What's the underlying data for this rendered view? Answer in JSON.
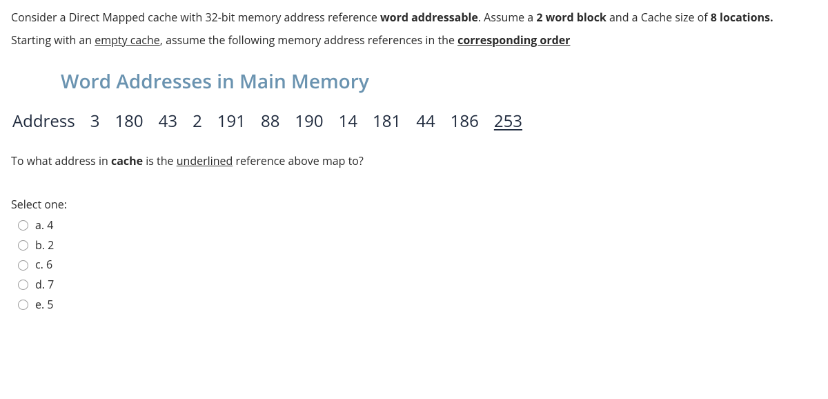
{
  "intro": {
    "line1_a": "Consider a Direct Mapped cache with 32-bit memory address reference ",
    "line1_b": "word addressable",
    "line1_c": ". Assume a ",
    "line1_d": "2 word block",
    "line1_e": " and a Cache size of ",
    "line1_f": "8 locations.",
    "line2_a": "Starting with an ",
    "line2_b": "empty cache",
    "line2_c": ", assume the following memory address references in the ",
    "line2_d": "corresponding order"
  },
  "heading": "Word Addresses in Main Memory",
  "addresses": {
    "label": "Address",
    "list": [
      "3",
      "180",
      "43",
      "2",
      "191",
      "88",
      "190",
      "14",
      "181",
      "44",
      "186",
      "253"
    ],
    "underlined_index": 11
  },
  "map_question": {
    "pre": "To what address in ",
    "cache": "cache",
    "mid": " is the ",
    "ul": "underlined",
    "post": " reference above map to?"
  },
  "select_one": "Select one:",
  "answers": [
    {
      "key": "a",
      "label": "a. 4"
    },
    {
      "key": "b",
      "label": "b. 2"
    },
    {
      "key": "c",
      "label": "c. 6"
    },
    {
      "key": "d",
      "label": "d. 7"
    },
    {
      "key": "e",
      "label": "e. 5"
    }
  ]
}
